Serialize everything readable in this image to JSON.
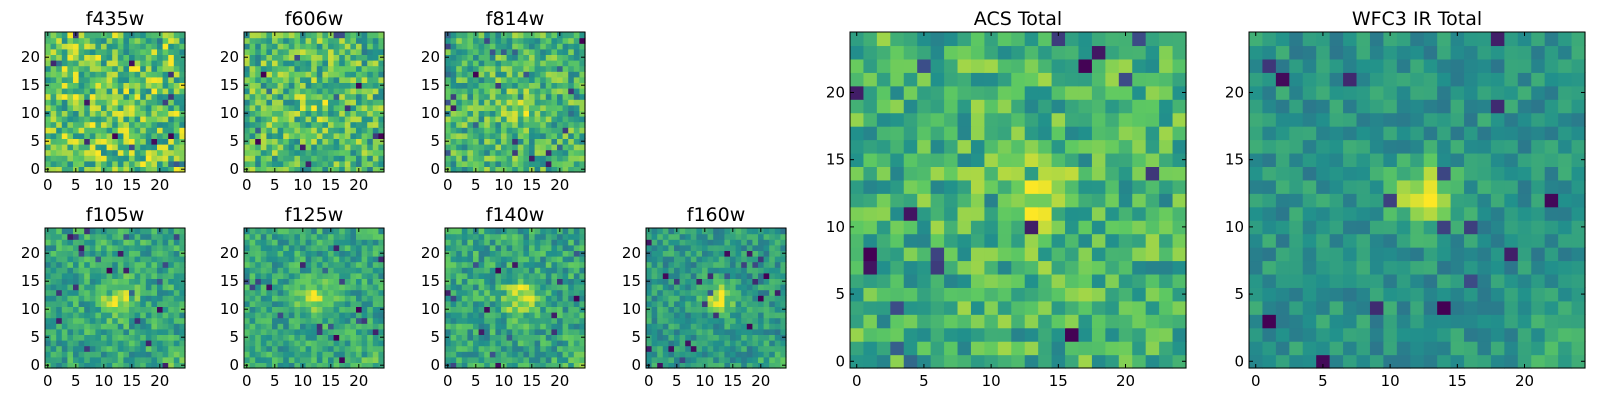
{
  "colors": {
    "colormap": [
      "#440154",
      "#3b528b",
      "#21918c",
      "#5ec962",
      "#fde725"
    ],
    "frame": "#000000",
    "background": "#ffffff"
  },
  "chart_data": [
    {
      "type": "heatmap",
      "title": "f435w",
      "shape": [
        25,
        25
      ],
      "xticks": [
        "0",
        "5",
        "10",
        "15",
        "20"
      ],
      "yticks": [
        "0",
        "5",
        "10",
        "15",
        "20"
      ],
      "colormap": "viridis",
      "origin": "lower",
      "noise": 0.62,
      "blob": {
        "x": 12.5,
        "y": 12,
        "amp": 0.0,
        "sigma": 2.2
      },
      "gradient": 0.0
    },
    {
      "type": "heatmap",
      "title": "f606w",
      "shape": [
        25,
        25
      ],
      "xticks": [
        "0",
        "5",
        "10",
        "15",
        "20"
      ],
      "yticks": [
        "0",
        "5",
        "10",
        "15",
        "20"
      ],
      "colormap": "viridis",
      "origin": "lower",
      "noise": 0.6,
      "blob": {
        "x": 12.5,
        "y": 12,
        "amp": 0.12,
        "sigma": 2.2
      },
      "gradient": 0.0
    },
    {
      "type": "heatmap",
      "title": "f814w",
      "shape": [
        25,
        25
      ],
      "xticks": [
        "0",
        "5",
        "10",
        "15",
        "20"
      ],
      "yticks": [
        "0",
        "5",
        "10",
        "15",
        "20"
      ],
      "colormap": "viridis",
      "origin": "lower",
      "noise": 0.55,
      "blob": {
        "x": 13,
        "y": 12,
        "amp": 0.3,
        "sigma": 2.0
      },
      "gradient": 0.0
    },
    {
      "type": "heatmap",
      "title": "f105w",
      "shape": [
        25,
        25
      ],
      "xticks": [
        "0",
        "5",
        "10",
        "15",
        "20"
      ],
      "yticks": [
        "0",
        "5",
        "10",
        "15",
        "20"
      ],
      "colormap": "viridis",
      "origin": "lower",
      "noise": 0.42,
      "blob": {
        "x": 12.5,
        "y": 12,
        "amp": 0.45,
        "sigma": 2.0
      },
      "gradient": 0.15
    },
    {
      "type": "heatmap",
      "title": "f125w",
      "shape": [
        25,
        25
      ],
      "xticks": [
        "0",
        "5",
        "10",
        "15",
        "20"
      ],
      "yticks": [
        "0",
        "5",
        "10",
        "15",
        "20"
      ],
      "colormap": "viridis",
      "origin": "lower",
      "noise": 0.42,
      "blob": {
        "x": 12.5,
        "y": 12,
        "amp": 0.4,
        "sigma": 2.0
      },
      "gradient": 0.18
    },
    {
      "type": "heatmap",
      "title": "f140w",
      "shape": [
        25,
        25
      ],
      "xticks": [
        "0",
        "5",
        "10",
        "15",
        "20"
      ],
      "yticks": [
        "0",
        "5",
        "10",
        "15",
        "20"
      ],
      "colormap": "viridis",
      "origin": "lower",
      "noise": 0.42,
      "blob": {
        "x": 13,
        "y": 12,
        "amp": 0.45,
        "sigma": 2.0
      },
      "gradient": 0.15
    },
    {
      "type": "heatmap",
      "title": "f160w",
      "shape": [
        25,
        25
      ],
      "xticks": [
        "0",
        "5",
        "10",
        "15",
        "20"
      ],
      "yticks": [
        "0",
        "5",
        "10",
        "15",
        "20"
      ],
      "colormap": "viridis",
      "origin": "lower",
      "noise": 0.4,
      "blob": {
        "x": 12.5,
        "y": 12,
        "amp": 0.5,
        "sigma": 1.8
      },
      "gradient": 0.18
    },
    {
      "type": "heatmap",
      "title": "ACS Total",
      "shape": [
        25,
        25
      ],
      "xticks": [
        "0",
        "5",
        "10",
        "15",
        "20"
      ],
      "yticks": [
        "0",
        "5",
        "10",
        "15",
        "20"
      ],
      "colormap": "viridis",
      "origin": "lower",
      "noise": 0.5,
      "blob": {
        "x": 12.5,
        "y": 12.5,
        "amp": 0.25,
        "sigma": 2.2
      },
      "gradient": 0.0
    },
    {
      "type": "heatmap",
      "title": "WFC3 IR Total",
      "shape": [
        25,
        25
      ],
      "xticks": [
        "0",
        "5",
        "10",
        "15",
        "20"
      ],
      "yticks": [
        "0",
        "5",
        "10",
        "15",
        "20"
      ],
      "colormap": "viridis",
      "origin": "lower",
      "noise": 0.33,
      "blob": {
        "x": 12.5,
        "y": 12.5,
        "amp": 0.6,
        "sigma": 1.6
      },
      "gradient": 0.22
    }
  ]
}
